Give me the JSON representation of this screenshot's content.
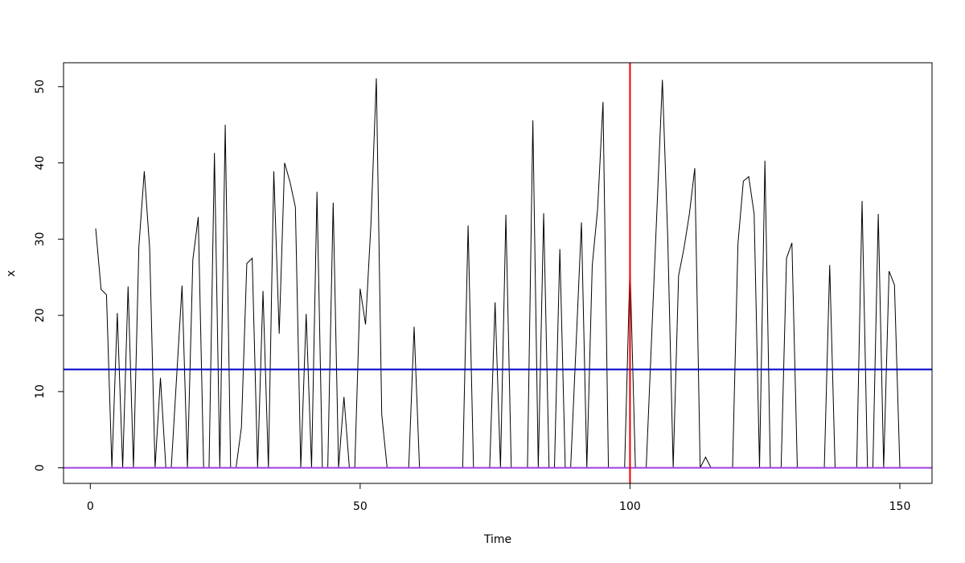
{
  "chart_data": {
    "type": "line",
    "xlabel": "Time",
    "ylabel": "x",
    "color": "#000000",
    "x": [
      1,
      2,
      3,
      4,
      5,
      6,
      7,
      8,
      9,
      10,
      11,
      12,
      13,
      14,
      15,
      16,
      17,
      18,
      19,
      20,
      21,
      22,
      23,
      24,
      25,
      26,
      27,
      28,
      29,
      30,
      31,
      32,
      33,
      34,
      35,
      36,
      37,
      38,
      39,
      40,
      41,
      42,
      43,
      44,
      45,
      46,
      47,
      48,
      49,
      50,
      51,
      52,
      53,
      54,
      55,
      56,
      57,
      58,
      59,
      60,
      61,
      62,
      63,
      64,
      65,
      66,
      67,
      68,
      69,
      70,
      71,
      72,
      73,
      74,
      75,
      76,
      77,
      78,
      79,
      80,
      81,
      82,
      83,
      84,
      85,
      86,
      87,
      88,
      89,
      90,
      91,
      92,
      93,
      94,
      95,
      96,
      97,
      98,
      99,
      100,
      101,
      102,
      103,
      104,
      105,
      106,
      107,
      108,
      109,
      110,
      111,
      112,
      113,
      114,
      115,
      116,
      117,
      118,
      119,
      120,
      121,
      122,
      123,
      124,
      125,
      126,
      127,
      128,
      129,
      130,
      131,
      132,
      133,
      134,
      135,
      136,
      137,
      138,
      139,
      140,
      141,
      142,
      143,
      144,
      145,
      146,
      147,
      148,
      149,
      150
    ],
    "values": [
      31.4,
      23.4,
      22.7,
      0,
      20.3,
      0,
      23.8,
      0,
      29,
      38.9,
      28.8,
      0,
      11.8,
      0,
      0,
      12,
      23.9,
      0,
      27.3,
      32.9,
      0,
      0,
      41.3,
      0,
      45,
      0,
      0,
      5.3,
      26.8,
      27.5,
      0,
      23.2,
      0,
      38.9,
      17.6,
      40,
      37.5,
      34.2,
      0,
      20.2,
      0,
      36.2,
      0,
      0,
      34.8,
      0,
      9.3,
      0,
      0,
      23.5,
      18.8,
      32,
      51.1,
      7,
      0,
      0,
      0,
      0,
      0,
      18.5,
      0,
      0,
      0,
      0,
      0,
      0,
      0,
      0,
      0,
      31.8,
      0,
      0,
      0,
      0,
      21.7,
      0,
      33.2,
      0,
      0,
      0,
      0,
      45.6,
      0,
      33.4,
      0,
      0,
      28.7,
      0,
      0,
      16,
      32.2,
      0,
      26.5,
      34,
      48,
      0,
      0,
      0,
      0,
      26.7,
      0,
      0,
      0,
      17,
      34,
      50.9,
      30,
      0,
      25.2,
      28.8,
      33.3,
      39.3,
      0,
      1.4,
      0,
      0,
      0,
      0,
      0,
      29.4,
      37.6,
      38.2,
      33.3,
      0,
      40.3,
      0,
      0,
      0,
      27.5,
      29.5,
      0,
      0,
      0,
      0,
      0,
      0,
      26.6,
      0,
      0,
      0,
      0,
      0,
      35,
      0,
      0,
      33.3,
      0,
      25.8,
      24,
      0
    ],
    "xlim": [
      -4.96,
      155.96
    ],
    "ylim": [
      -2.04,
      53.14
    ],
    "xticks": [
      0,
      50,
      100,
      150
    ],
    "yticks": [
      0,
      10,
      20,
      30,
      40,
      50
    ],
    "hlines": [
      {
        "value": 12.9,
        "color": "#0000cc"
      },
      {
        "value": 0,
        "color": "#a040e0"
      }
    ],
    "vlines": [
      {
        "value": 100,
        "color": "#ee0000"
      }
    ]
  }
}
